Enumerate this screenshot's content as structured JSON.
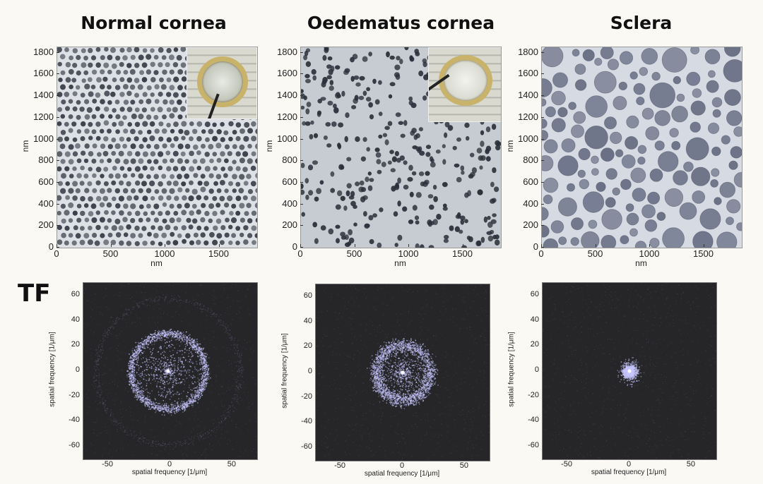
{
  "panels_top": [
    {
      "title": "Normal cornea",
      "xlabel": "nm",
      "ylabel": "nm",
      "inset_type": "clear"
    },
    {
      "title": "Oedematus cornea",
      "xlabel": "nm",
      "ylabel": "nm",
      "inset_type": "cloudy"
    },
    {
      "title": "Sclera",
      "xlabel": "nm",
      "ylabel": "nm",
      "inset_type": "none"
    }
  ],
  "top_axes": {
    "x_ticks": [
      "0",
      "500",
      "1000",
      "1500"
    ],
    "y_ticks": [
      "0",
      "200",
      "400",
      "600",
      "800",
      "1000",
      "1200",
      "1400",
      "1600",
      "1800"
    ],
    "range": [
      0,
      1850
    ]
  },
  "tf_label": "TF",
  "bottom_axes": {
    "xlabel": "spatial frequency [1/μm]",
    "ylabel": "spatial frequency [1/μm]",
    "x_ticks": [
      "-50",
      "0",
      "50"
    ],
    "y_ticks": [
      "60",
      "40",
      "20",
      "0",
      "-20",
      "-40",
      "-60"
    ],
    "range": [
      -70,
      70
    ]
  },
  "tf_panels": [
    {
      "pattern": "ring",
      "ring_radius": 30
    },
    {
      "pattern": "ring",
      "ring_radius": 22
    },
    {
      "pattern": "blob",
      "ring_radius": 0
    }
  ],
  "colors": {
    "background": "#fbf9f4",
    "fibril_dark": "#2a2f3a",
    "sclera_fibril": "#6a7186",
    "tf_background": "#262629",
    "tf_glow": "#c8c6ff"
  }
}
